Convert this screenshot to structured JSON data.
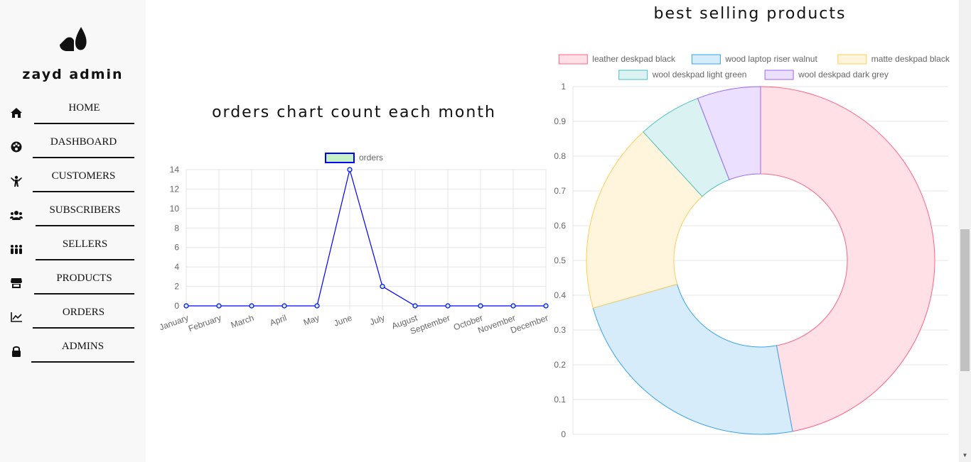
{
  "brand": "zayd admin",
  "nav": [
    {
      "label": "HOME",
      "icon": "home-icon"
    },
    {
      "label": "DASHBOARD",
      "icon": "palette-icon"
    },
    {
      "label": "CUSTOMERS",
      "icon": "person-icon"
    },
    {
      "label": "SUBSCRIBERS",
      "icon": "users-icon"
    },
    {
      "label": "SELLERS",
      "icon": "people-group-icon"
    },
    {
      "label": "PRODUCTS",
      "icon": "store-icon"
    },
    {
      "label": "ORDERS",
      "icon": "chart-line-icon"
    },
    {
      "label": "ADMINS",
      "icon": "lock-icon"
    }
  ],
  "orders_chart": {
    "title": "orders chart count each month"
  },
  "products_chart": {
    "title": "best selling products"
  },
  "chart_data": [
    {
      "type": "line",
      "title": "orders chart count each month",
      "categories": [
        "January",
        "February",
        "March",
        "April",
        "May",
        "June",
        "July",
        "August",
        "September",
        "October",
        "November",
        "December"
      ],
      "series": [
        {
          "name": "orders",
          "values": [
            0,
            0,
            0,
            0,
            0,
            14,
            2,
            0,
            0,
            0,
            0,
            0
          ],
          "color": "#0000ff",
          "fill": "#c6f0c6"
        }
      ],
      "ylim": [
        0,
        14
      ],
      "yticks": [
        0,
        2,
        4,
        6,
        8,
        10,
        12,
        14
      ],
      "grid": true,
      "legend": "top"
    },
    {
      "type": "pie",
      "title": "best selling products",
      "categories": [
        "leather deskpad black",
        "wood laptop riser walnut",
        "matte deskpad black",
        "wool deskpad light green",
        "wool deskpad dark grey"
      ],
      "values": [
        8,
        4,
        3,
        1,
        1
      ],
      "colors": [
        {
          "border": "#ff6384",
          "fill": "#ffe0e6"
        },
        {
          "border": "#36a2eb",
          "fill": "#d7ecfb"
        },
        {
          "border": "#ffcd56",
          "fill": "#fff5dd"
        },
        {
          "border": "#4bc0c0",
          "fill": "#dbf2f2"
        },
        {
          "border": "#9966ff",
          "fill": "#ebe0ff"
        }
      ],
      "yticks": [
        "0",
        "0.1",
        "0.2",
        "0.3",
        "0.4",
        "0.5",
        "0.6",
        "0.7",
        "0.8",
        "0.9",
        "1"
      ],
      "grid": true,
      "legend": "top"
    }
  ]
}
